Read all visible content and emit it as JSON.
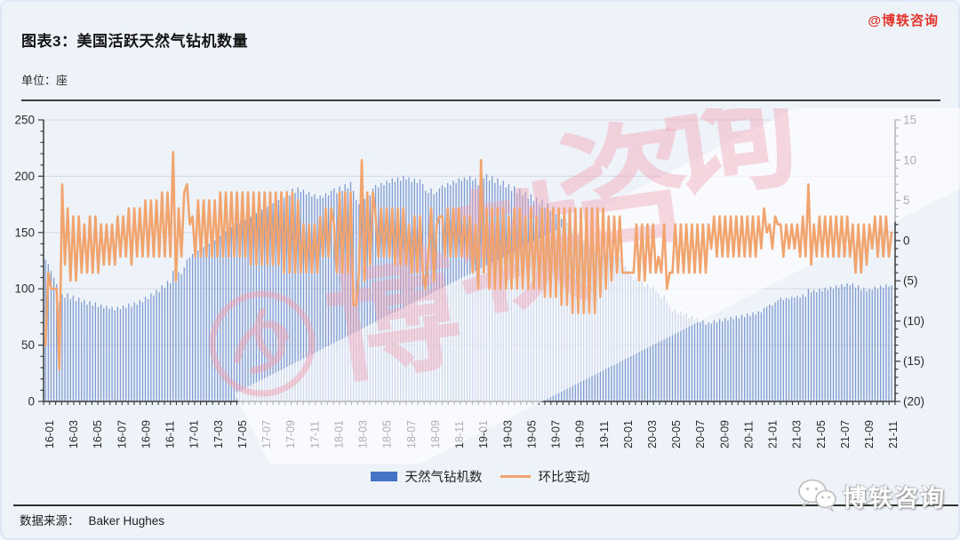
{
  "header": {
    "watermark_top_right": "@博轶咨询",
    "title": "图表3：美国活跃天然气钻机数量",
    "unit_label": "单位：座"
  },
  "legend": {
    "bar_label": "天然气钻机数",
    "line_label": "环比变动"
  },
  "footer": {
    "source_label": "数据来源：",
    "source_value": "Baker Hughes",
    "watermark_bottom_right": "博轶咨询"
  },
  "watermark": {
    "chars": [
      "博",
      "轶",
      "咨",
      "询"
    ],
    "color": "#F0A2B2"
  },
  "chart_data": {
    "type": "bar+line",
    "title": "美国活跃天然气钻机数量",
    "unit": "座",
    "frequency": "weekly",
    "grid": "horizontal",
    "legend_position": "bottom-center",
    "x_tick_labels": [
      "16-01",
      "16-03",
      "16-05",
      "16-07",
      "16-09",
      "16-11",
      "17-01",
      "17-03",
      "17-05",
      "17-07",
      "17-09",
      "17-11",
      "18-01",
      "18-03",
      "18-05",
      "18-07",
      "18-09",
      "18-11",
      "19-01",
      "19-03",
      "19-05",
      "19-07",
      "19-09",
      "19-11",
      "20-01",
      "20-03",
      "20-05",
      "20-07",
      "20-09",
      "20-11",
      "21-01",
      "21-03",
      "21-05",
      "21-07",
      "21-09",
      "21-11"
    ],
    "left_axis": {
      "min": 0,
      "max": 250,
      "step": 50,
      "tick_labels": [
        "0",
        "50",
        "100",
        "150",
        "200",
        "250"
      ]
    },
    "right_axis": {
      "min": -20,
      "max": 15,
      "step": 5,
      "tick_labels": [
        "(20)",
        "(15)",
        "(10)",
        "(5)",
        "0",
        "5",
        "10",
        "15"
      ]
    },
    "series": [
      {
        "name": "天然气钻机数",
        "type": "bar",
        "axis": "left",
        "color": "#4472C4",
        "values": [
          126,
          122,
          116,
          110,
          104,
          88,
          95,
          92,
          96,
          91,
          94,
          89,
          92,
          88,
          90,
          86,
          89,
          85,
          88,
          84,
          86,
          83,
          85,
          82,
          84,
          81,
          84,
          82,
          85,
          83,
          87,
          84,
          88,
          86,
          90,
          88,
          93,
          91,
          96,
          94,
          99,
          97,
          103,
          101,
          107,
          105,
          116,
          111,
          115,
          113,
          119,
          126,
          128,
          131,
          129,
          134,
          132,
          137,
          135,
          140,
          138,
          143,
          141,
          147,
          145,
          151,
          149,
          155,
          153,
          159,
          157,
          163,
          161,
          167,
          164,
          170,
          167,
          173,
          170,
          176,
          173,
          179,
          176,
          182,
          179,
          185,
          181,
          187,
          183,
          189,
          185,
          190,
          186,
          188,
          184,
          186,
          182,
          184,
          180,
          183,
          181,
          185,
          183,
          187,
          189,
          185,
          191,
          187,
          193,
          189,
          195,
          187,
          179,
          175,
          185,
          180,
          186,
          183,
          189,
          192,
          190,
          194,
          192,
          196,
          194,
          198,
          195,
          199,
          196,
          200,
          197,
          199,
          195,
          198,
          194,
          197,
          193,
          187,
          185,
          189,
          184,
          186,
          189,
          192,
          190,
          194,
          192,
          196,
          194,
          198,
          196,
          199,
          197,
          200,
          196,
          198,
          192,
          202,
          198,
          202,
          196,
          200,
          194,
          198,
          192,
          196,
          190,
          193,
          187,
          191,
          185,
          189,
          183,
          186,
          180,
          184,
          178,
          181,
          175,
          179,
          172,
          176,
          169,
          173,
          166,
          170,
          162,
          166,
          158,
          162,
          153,
          157,
          148,
          152,
          143,
          147,
          138,
          142,
          133,
          137,
          130,
          134,
          128,
          131,
          126,
          129,
          125,
          128,
          124,
          120,
          116,
          112,
          108,
          110,
          105,
          107,
          102,
          104,
          100,
          102,
          98,
          96,
          92,
          94,
          88,
          84,
          80,
          82,
          78,
          80,
          76,
          78,
          74,
          76,
          72,
          74,
          70,
          72,
          68,
          70,
          69,
          72,
          70,
          73,
          71,
          74,
          72,
          75,
          73,
          76,
          74,
          77,
          75,
          78,
          76,
          79,
          77,
          80,
          79,
          83,
          84,
          86,
          85,
          88,
          90,
          92,
          90,
          92,
          91,
          93,
          92,
          94,
          92,
          95,
          93,
          100,
          97,
          99,
          97,
          100,
          98,
          101,
          99,
          102,
          100,
          103,
          101,
          104,
          102,
          105,
          103,
          105,
          101,
          103,
          99,
          101,
          98,
          100,
          99,
          102,
          100,
          103,
          101,
          104,
          102,
          103
        ]
      },
      {
        "name": "环比变动",
        "type": "line",
        "axis": "right",
        "color": "#F2A46E",
        "definition": "week-over-week change of 天然气钻机数 (current value minus previous value)",
        "first_change": -13
      }
    ]
  }
}
